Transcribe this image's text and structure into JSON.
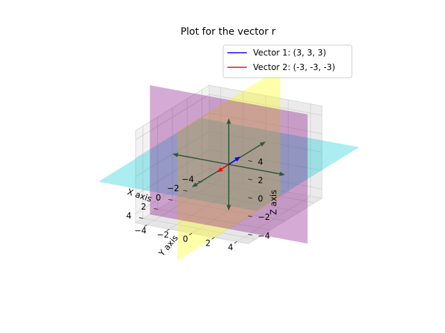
{
  "chart_data": {
    "type": "3d-vector",
    "title": "Plot for the vector r",
    "xlabel": "X axis",
    "ylabel": "Y axis",
    "zlabel": "Z axis",
    "xlim": [
      -5,
      5
    ],
    "ylim": [
      -5,
      5
    ],
    "zlim": [
      -5,
      5
    ],
    "x_ticks": [
      "−4",
      "−2",
      "0",
      "2",
      "4"
    ],
    "y_ticks": [
      "−4",
      "−2",
      "0",
      "2",
      "4"
    ],
    "z_ticks": [
      "−4",
      "−2",
      "0",
      "2",
      "4"
    ],
    "grid": true,
    "legend_position": "top-right",
    "series": [
      {
        "name": "Vector 1: (3, 3, 3)",
        "vector": [
          3,
          3,
          3
        ],
        "color": "#0000ff"
      },
      {
        "name": "Vector 2: (-3, -3, -3)",
        "vector": [
          -3,
          -3,
          -3
        ],
        "color": "#ff0000"
      }
    ],
    "axis_arrows": [
      {
        "name": "x-axis-arrow",
        "direction": [
          1,
          0,
          0
        ]
      },
      {
        "name": "neg-x-axis-arrow",
        "direction": [
          -1,
          0,
          0
        ]
      },
      {
        "name": "y-axis-arrow",
        "direction": [
          0,
          1,
          0
        ]
      },
      {
        "name": "neg-y-axis-arrow",
        "direction": [
          0,
          -1,
          0
        ]
      },
      {
        "name": "z-axis-arrow",
        "direction": [
          0,
          0,
          1
        ]
      },
      {
        "name": "neg-z-axis-arrow",
        "direction": [
          0,
          0,
          -1
        ]
      }
    ],
    "axis_arrow_color": "#2e5a3a",
    "planes": [
      {
        "name": "xy-plane",
        "color": "#00c8d2",
        "opacity": 0.33
      },
      {
        "name": "xz-plane",
        "color": "#ffff00",
        "opacity": 0.33
      },
      {
        "name": "yz-plane",
        "color": "#800080",
        "opacity": 0.33
      }
    ]
  }
}
